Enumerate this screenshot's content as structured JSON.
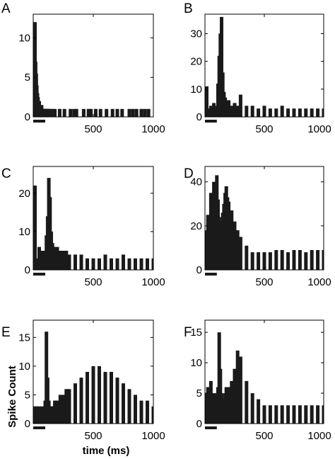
{
  "chart_data": [
    {
      "panel": "A",
      "type": "bar",
      "xlim": [
        0,
        1000
      ],
      "ylim": [
        0,
        13
      ],
      "xticks": [
        500,
        1000
      ],
      "yticks": [
        0,
        5,
        10
      ],
      "xlabel": "",
      "ylabel": "",
      "stimulus_bar": [
        0,
        100
      ],
      "x": [
        5,
        10,
        15,
        20,
        25,
        30,
        35,
        40,
        45,
        50,
        55,
        60,
        65,
        70,
        75,
        80,
        85,
        90,
        95,
        100,
        105,
        110,
        115,
        120,
        130,
        140,
        160,
        180,
        220,
        260,
        310,
        340,
        360,
        420,
        460,
        480,
        520,
        560,
        610,
        660,
        700,
        740,
        800,
        830,
        860,
        900,
        930,
        960
      ],
      "values": [
        12,
        10.5,
        9,
        7,
        5.5,
        4,
        3,
        2.5,
        2,
        2,
        1.5,
        1,
        1,
        1.5,
        1,
        1,
        1,
        1,
        1,
        1,
        1,
        1,
        1,
        1,
        1,
        1,
        1,
        1,
        1,
        1,
        1,
        1,
        1,
        1,
        1,
        1,
        1,
        1,
        1,
        1,
        1,
        1,
        1,
        1,
        1,
        1,
        1,
        1
      ]
    },
    {
      "panel": "B",
      "type": "bar",
      "xlim": [
        0,
        1000
      ],
      "ylim": [
        0,
        37
      ],
      "xticks": [
        500,
        1000
      ],
      "yticks": [
        0,
        10,
        20,
        30
      ],
      "xlabel": "",
      "ylabel": "",
      "stimulus_bar": [
        0,
        100
      ],
      "x": [
        0,
        25,
        50,
        75,
        100,
        110,
        120,
        130,
        140,
        150,
        160,
        170,
        180,
        190,
        200,
        225,
        250,
        275,
        300,
        350,
        400,
        450,
        500,
        550,
        600,
        650,
        700,
        750,
        800,
        850,
        900,
        950,
        1000
      ],
      "values": [
        11,
        3,
        4,
        5,
        4,
        12,
        22,
        30,
        36,
        16,
        9,
        7,
        6,
        5,
        6,
        4,
        5,
        4,
        8,
        4,
        4,
        3,
        4,
        3,
        3,
        4,
        3,
        3,
        3,
        3,
        3,
        3,
        3
      ]
    },
    {
      "panel": "C",
      "type": "bar",
      "xlim": [
        0,
        1000
      ],
      "ylim": [
        0,
        27
      ],
      "xticks": [
        500,
        1000
      ],
      "yticks": [
        0,
        10,
        20
      ],
      "xlabel": "",
      "ylabel": "",
      "stimulus_bar": [
        0,
        100
      ],
      "x": [
        0,
        25,
        50,
        75,
        100,
        110,
        120,
        130,
        140,
        150,
        160,
        170,
        180,
        190,
        200,
        225,
        250,
        275,
        300,
        350,
        400,
        450,
        500,
        550,
        600,
        650,
        700,
        750,
        800,
        850,
        900,
        950,
        1000
      ],
      "values": [
        22,
        3,
        6,
        5,
        5,
        9,
        14,
        24,
        19,
        10,
        7,
        6,
        6,
        5,
        6,
        5,
        5,
        5,
        4,
        4,
        4,
        3,
        3,
        3,
        4,
        3,
        3,
        4,
        3,
        3,
        3,
        3,
        3
      ]
    },
    {
      "panel": "D",
      "type": "bar",
      "xlim": [
        0,
        1000
      ],
      "ylim": [
        0,
        47
      ],
      "xticks": [
        500,
        1000
      ],
      "yticks": [
        0,
        20,
        40
      ],
      "xlabel": "",
      "ylabel": "",
      "stimulus_bar": [
        0,
        100
      ],
      "x": [
        0,
        25,
        50,
        75,
        100,
        110,
        120,
        130,
        140,
        150,
        160,
        170,
        180,
        190,
        200,
        225,
        250,
        275,
        300,
        350,
        400,
        450,
        500,
        550,
        600,
        650,
        700,
        750,
        800,
        850,
        900,
        950,
        1000
      ],
      "values": [
        18,
        25,
        35,
        40,
        43,
        32,
        24,
        21,
        22,
        26,
        30,
        35,
        38,
        33,
        31,
        27,
        22,
        18,
        15,
        11,
        8,
        8,
        8,
        8,
        9,
        9,
        8,
        9,
        9,
        8,
        9,
        9,
        9
      ]
    },
    {
      "panel": "E",
      "type": "bar",
      "xlim": [
        0,
        1000
      ],
      "ylim": [
        0,
        18
      ],
      "xticks": [
        500,
        1000
      ],
      "yticks": [
        0,
        5,
        10,
        15
      ],
      "xlabel": "time (ms)",
      "ylabel": "Spike Count",
      "stimulus_bar": [
        0,
        100
      ],
      "x": [
        0,
        25,
        50,
        75,
        100,
        110,
        120,
        130,
        140,
        150,
        160,
        170,
        180,
        190,
        200,
        225,
        250,
        275,
        300,
        350,
        400,
        450,
        500,
        550,
        600,
        650,
        700,
        750,
        800,
        850,
        900,
        950,
        1000
      ],
      "values": [
        3,
        3,
        3,
        3,
        4,
        16,
        8,
        4,
        3,
        3,
        3,
        3,
        4,
        4,
        4,
        5,
        5,
        6,
        6,
        7,
        8,
        9,
        10,
        10,
        9,
        9,
        8,
        7,
        6,
        5,
        4,
        4,
        3
      ]
    },
    {
      "panel": "F",
      "type": "bar",
      "xlim": [
        0,
        1000
      ],
      "ylim": [
        0,
        17
      ],
      "xticks": [
        500,
        1000
      ],
      "yticks": [
        0,
        5,
        10,
        15
      ],
      "xlabel": "time (ms)",
      "ylabel": "",
      "stimulus_bar": [
        0,
        100
      ],
      "x": [
        0,
        25,
        50,
        75,
        100,
        110,
        120,
        130,
        140,
        150,
        160,
        170,
        180,
        190,
        200,
        225,
        250,
        275,
        300,
        350,
        400,
        450,
        500,
        550,
        600,
        650,
        700,
        750,
        800,
        850,
        900,
        950,
        1000
      ],
      "values": [
        5,
        6,
        7,
        5,
        5,
        6,
        15,
        9,
        5,
        4,
        4,
        5,
        6,
        5,
        6,
        7,
        9,
        12,
        11,
        7,
        5,
        4,
        3,
        3,
        3,
        3,
        3,
        3,
        3,
        3,
        3,
        3,
        3
      ]
    }
  ],
  "figure": {
    "panel_letters": [
      "A",
      "B",
      "C",
      "D",
      "E",
      "F"
    ],
    "ylabel": "Spike Count",
    "xlabel": "time (ms)",
    "bar_color": "#1a1a1a",
    "axis_color": "#000000"
  }
}
